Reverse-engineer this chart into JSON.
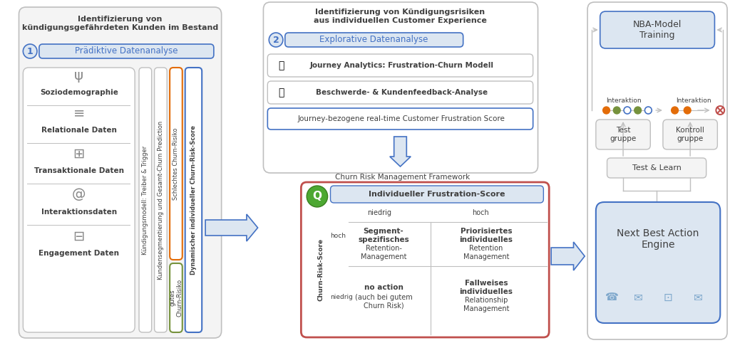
{
  "bg_color": "#ffffff",
  "light_blue_fill": "#dce6f1",
  "blue_border": "#4472c4",
  "gray_border": "#bfbfbf",
  "light_gray_fill": "#f0f0f0",
  "orange_border": "#e36c09",
  "green_border": "#76923c",
  "red_border": "#c0504d",
  "text_dark": "#404040",
  "section1_title": "Identifizierung von\nkündigungsgefährdeten Kunden im Bestand",
  "section1_badge_label": "Prädiktive Datenanalyse",
  "data_items": [
    "Soziodemographie",
    "Relationale Daten",
    "Transaktionale Daten",
    "Interaktionsdaten",
    "Engagement Daten"
  ],
  "col1_label": "Kündigungsmodell: Treiber & Trigger",
  "col2_label": "Kundensegmentierung und Gesamt-Churn Prediction",
  "col3_label": "Schlechtes Churn-Risiko",
  "col4_label": "gutes\nChurn-Risiko",
  "col5_label": "Dynamischer individueller Churn-Risk-Score",
  "section2_title": "Identifizierung von Kündigungsrisiken\naus individuellen Customer Experience",
  "section2_badge_label": "Explorative Datenanalyse",
  "row1_label": "Journey Analytics: Frustration-Churn Modell",
  "row2_label": "Beschwerde- & Kundenfeedback-Analyse",
  "row3_label": "Journey-bezogene real-time Customer Frustration Score",
  "framework_label": "Churn Risk Management Framework",
  "matrix_title": "Individueller Frustration-Score",
  "matrix_col1": "niedrig",
  "matrix_col2": "hoch",
  "matrix_row_label": "Churn-Risk-Score",
  "matrix_r1_label": "hoch",
  "matrix_r2_label": "niedrig",
  "cell_tl_bold": "Segment-\nspezifisches",
  "cell_tl_normal": "Retention-\nManagement",
  "cell_tr_bold": "Priorisiertes\nindividuelles",
  "cell_tr_normal": "Retention\nManagement",
  "cell_bl_bold": "no action",
  "cell_bl_italic": "(auch bei gutem\nChurn Risk)",
  "cell_br_bold": "Fallweises\nindividuelles",
  "cell_br_normal": "Relationship\nManagement",
  "nba_title": "NBA-Model\nTraining",
  "interaktion1": "Interaktion",
  "interaktion2": "Interaktion",
  "testgruppe": "Test\ngruppe",
  "kontrollgruppe": "Kontroll\ngruppe",
  "test_learn": "Test & Learn",
  "nba_engine": "Next Best Action\nEngine",
  "dot_sequence": [
    {
      "type": "dot",
      "color": "#e36c09"
    },
    {
      "type": "dot",
      "color": "#76923c"
    },
    {
      "type": "dot",
      "color": "open",
      "border": "#4472c4"
    },
    {
      "type": "dot",
      "color": "#76923c"
    },
    {
      "type": "dot",
      "color": "open",
      "border": "#4472c4"
    },
    {
      "type": "arrow"
    },
    {
      "type": "gap"
    },
    {
      "type": "dot",
      "color": "#e36c09"
    },
    {
      "type": "gap"
    },
    {
      "type": "dot",
      "color": "#e36c09"
    },
    {
      "type": "arrow"
    },
    {
      "type": "xmark"
    }
  ]
}
